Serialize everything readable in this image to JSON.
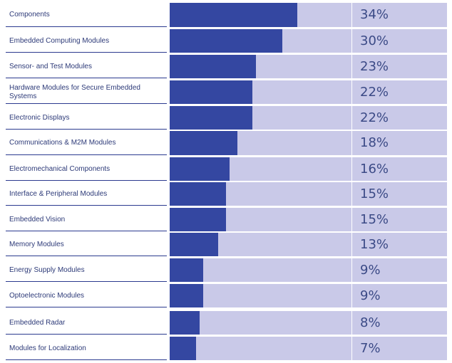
{
  "chart_data": {
    "type": "bar",
    "orientation": "horizontal",
    "categories": [
      "Components",
      "Embedded Computing Modules",
      "Sensor- and Test Modules",
      "Hardware Modules for Secure Embedded Systems",
      "Electronic Displays",
      "Communications & M2M Modules",
      "Electromechanical Components",
      "Interface & Peripheral Modules",
      "Embedded Vision",
      "Memory Modules",
      "Energy Supply Modules",
      "Optoelectronic Modules",
      "Embedded Radar",
      "Modules for Localization"
    ],
    "values": [
      34,
      30,
      23,
      22,
      22,
      18,
      16,
      15,
      15,
      13,
      9,
      9,
      8,
      7
    ],
    "value_labels": [
      "34%",
      "30%",
      "23%",
      "22%",
      "22%",
      "18%",
      "16%",
      "15%",
      "15%",
      "13%",
      "9%",
      "9%",
      "8%",
      "7%"
    ],
    "xlim": [
      0,
      74
    ],
    "title": "",
    "xlabel": "",
    "ylabel": "",
    "grid": false,
    "colors": {
      "bar": "#3447a1",
      "track": "#c9c9e8",
      "label": "#2d3a78",
      "value": "#3b4a86"
    }
  }
}
